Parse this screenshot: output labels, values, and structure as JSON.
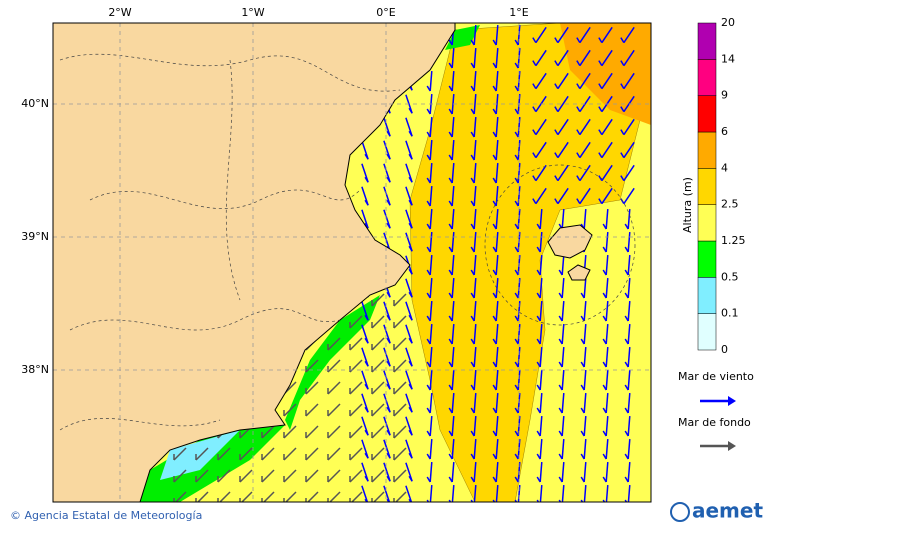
{
  "map": {
    "lon_labels": [
      "2°W",
      "1°W",
      "0°E",
      "1°E"
    ],
    "lat_labels": [
      "40°N",
      "39°N",
      "38°N"
    ],
    "colorbar": {
      "title": "Altura (m)",
      "levels": [
        0,
        0.1,
        0.5,
        1.25,
        2.5,
        4,
        6,
        9,
        14,
        20
      ],
      "colors": [
        "#e0ffff",
        "#80eeff",
        "#00ff00",
        "#ffff55",
        "#ffd700",
        "#ffaa00",
        "#ff0000",
        "#ff0080",
        "#b000b0"
      ]
    },
    "legend": [
      {
        "name": "Mar de viento",
        "color": "#0000ff"
      },
      {
        "name": "Mar de fondo",
        "color": "#555555"
      }
    ],
    "credit": "© Agencia Estatal de Meteorología",
    "logo": "aemet"
  }
}
